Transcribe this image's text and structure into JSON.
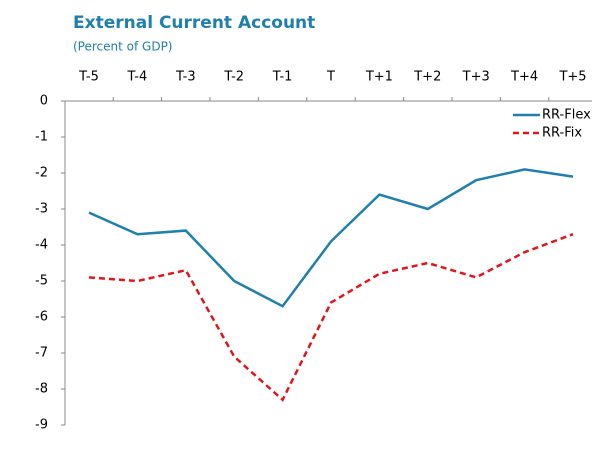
{
  "chart_data": {
    "type": "line",
    "title": "External Current Account",
    "subtitle": "(Percent of GDP)",
    "categories": [
      "T-5",
      "T-4",
      "T-3",
      "T-2",
      "T-1",
      "T",
      "T+1",
      "T+2",
      "T+3",
      "T+4",
      "T+5"
    ],
    "series": [
      {
        "name": "RR-Flex",
        "color": "#1f7fad",
        "dash": "solid",
        "values": [
          -3.1,
          -3.7,
          -3.6,
          -5.0,
          -5.7,
          -3.9,
          -2.6,
          -3.0,
          -2.2,
          -1.9,
          -2.1
        ]
      },
      {
        "name": "RR-Fix",
        "color": "#e0161b",
        "dash": "dashed",
        "values": [
          -4.9,
          -5.0,
          -4.7,
          -7.1,
          -8.3,
          -5.6,
          -4.8,
          -4.5,
          -4.9,
          -4.2,
          -3.7
        ]
      }
    ],
    "ylim": [
      0,
      -9
    ],
    "yticks": [
      0,
      -1,
      -2,
      -3,
      -4,
      -5,
      -6,
      -7,
      -8,
      -9
    ],
    "legend": "top-right"
  }
}
